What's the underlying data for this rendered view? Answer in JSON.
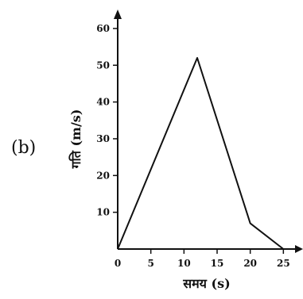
{
  "panel_label": "(b)",
  "chart_data": {
    "type": "line",
    "xlabel": "समय (s)",
    "ylabel": "गति (m/s)",
    "xlim": [
      0,
      27
    ],
    "ylim": [
      0,
      63
    ],
    "x_ticks": [
      "0",
      "5",
      "10",
      "15",
      "20",
      "25"
    ],
    "y_ticks": [
      "10",
      "20",
      "30",
      "40",
      "50",
      "60"
    ],
    "grid": false,
    "series": [
      {
        "x": [
          0,
          12,
          20,
          25
        ],
        "y": [
          0,
          52,
          7,
          0
        ]
      }
    ]
  }
}
